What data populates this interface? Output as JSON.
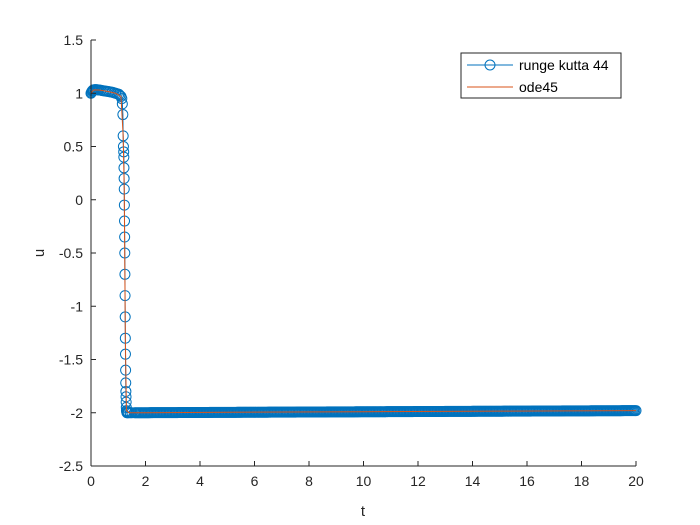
{
  "chart_data": {
    "type": "line",
    "title": "",
    "xlabel": "t",
    "ylabel": "u",
    "xlim": [
      0,
      20
    ],
    "ylim": [
      -2.5,
      1.5
    ],
    "xticks": [
      0,
      2,
      4,
      6,
      8,
      10,
      12,
      14,
      16,
      18,
      20
    ],
    "yticks": [
      -2.5,
      -2,
      -1.5,
      -1,
      -0.5,
      0,
      0.5,
      1,
      1.5
    ],
    "grid": false,
    "legend_position": "top-right",
    "series": [
      {
        "name": "runge kutta 44",
        "color": "#0072BD",
        "marker": "circle-open",
        "x": [
          0,
          0.02,
          0.04,
          0.06,
          0.08,
          0.1,
          0.14,
          0.18,
          0.22,
          0.26,
          0.3,
          0.36,
          0.42,
          0.48,
          0.54,
          0.6,
          0.66,
          0.72,
          0.78,
          0.84,
          0.9,
          0.96,
          1.02,
          1.06,
          1.1,
          1.13,
          1.15,
          1.17,
          1.18,
          1.19,
          1.2,
          1.205,
          1.21,
          1.215,
          1.22,
          1.225,
          1.23,
          1.235,
          1.24,
          1.245,
          1.25,
          1.255,
          1.26,
          1.265,
          1.27,
          1.275,
          1.28,
          1.285,
          1.29,
          1.295,
          1.3,
          1.31,
          1.32,
          1.34,
          1.38,
          1.44,
          1.5,
          1.6
        ],
        "y": [
          1.0,
          1.01,
          1.02,
          1.025,
          1.03,
          1.032,
          1.034,
          1.034,
          1.033,
          1.032,
          1.03,
          1.028,
          1.025,
          1.022,
          1.02,
          1.018,
          1.015,
          1.012,
          1.01,
          1.005,
          1.0,
          0.995,
          0.99,
          0.98,
          0.97,
          0.95,
          0.9,
          0.8,
          0.6,
          0.5,
          0.45,
          0.4,
          0.3,
          0.2,
          0.1,
          -0.05,
          -0.2,
          -0.35,
          -0.5,
          -0.7,
          -0.9,
          -1.1,
          -1.3,
          -1.45,
          -1.6,
          -1.72,
          -1.8,
          -1.85,
          -1.9,
          -1.95,
          -1.98,
          -1.99,
          -2.0,
          -2.0,
          -2.0,
          -2.0,
          -2.0,
          -2.0
        ],
        "x_dense_from": 1.6,
        "x_dense_to": 20,
        "y_dense_from": -2.0,
        "y_dense_to": -1.98
      },
      {
        "name": "ode45",
        "color": "#D95319",
        "marker": "none",
        "x": [
          0,
          0.1,
          0.3,
          0.6,
          0.9,
          1.1,
          1.18,
          1.22,
          1.26,
          1.3,
          1.4,
          2,
          5,
          10,
          15,
          20
        ],
        "y": [
          1.0,
          1.032,
          1.03,
          1.018,
          1.0,
          0.97,
          0.6,
          0.1,
          -1.3,
          -1.98,
          -2.0,
          -2.0,
          -1.995,
          -1.99,
          -1.985,
          -1.98
        ]
      }
    ]
  }
}
